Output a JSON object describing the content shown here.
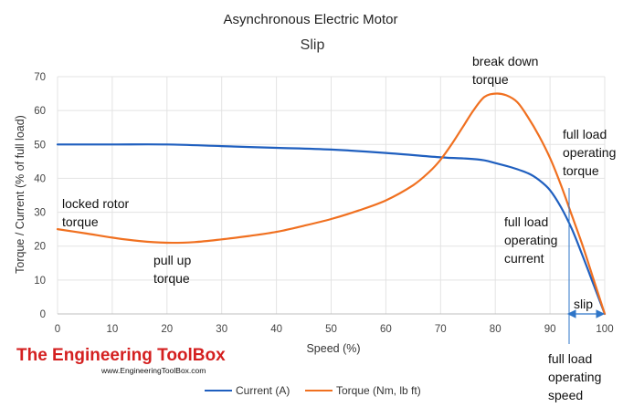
{
  "chart_data": {
    "type": "line",
    "title": "Asynchronous Electric Motor",
    "subtitle": "Slip",
    "xlabel": "Speed (%)",
    "ylabel": "Torque / Current (% of full load)",
    "xlim": [
      0,
      100
    ],
    "ylim": [
      0,
      70
    ],
    "xticks": [
      "0",
      "10",
      "20",
      "30",
      "40",
      "50",
      "60",
      "70",
      "80",
      "90",
      "100"
    ],
    "yticks": [
      "0",
      "10",
      "20",
      "30",
      "40",
      "50",
      "60",
      "70"
    ],
    "grid": true,
    "legend_position": "bottom",
    "series": [
      {
        "name": "Current (A)",
        "color": "#1f5fbf",
        "x": [
          0,
          10,
          20,
          30,
          40,
          50,
          60,
          70,
          75,
          78,
          80,
          83,
          86,
          88,
          90,
          92,
          94,
          96,
          98,
          100
        ],
        "y": [
          50,
          50,
          50,
          49.5,
          49,
          48.5,
          47.5,
          46.2,
          45.8,
          45.3,
          44.5,
          43.2,
          41.5,
          39.5,
          36.5,
          31.5,
          25,
          17,
          8.5,
          0
        ]
      },
      {
        "name": "Torque (Nm, lb ft)",
        "color": "#f07020",
        "x": [
          0,
          5,
          10,
          15,
          20,
          25,
          30,
          35,
          40,
          45,
          50,
          55,
          60,
          65,
          68,
          70,
          72,
          74,
          76,
          78,
          80,
          82,
          84,
          86,
          88,
          90,
          92,
          94,
          96,
          98,
          100
        ],
        "y": [
          25,
          23.8,
          22.5,
          21.5,
          21,
          21.2,
          22,
          23,
          24.2,
          26,
          28,
          30.5,
          33.5,
          38,
          42,
          45.5,
          50,
          55,
          60,
          64,
          65,
          64.5,
          62.5,
          58,
          52.5,
          46,
          38,
          29,
          20,
          10,
          0
        ]
      }
    ],
    "annotations": {
      "locked_rotor": [
        "locked rotor",
        "torque"
      ],
      "pull_up": [
        "pull up",
        "torque"
      ],
      "break_down": [
        "break down",
        "torque"
      ],
      "fl_torque": [
        "full load",
        "operating",
        "torque"
      ],
      "fl_current": [
        "full load",
        "operating",
        "current"
      ],
      "slip": "slip",
      "fl_speed": [
        "full load",
        "operating",
        "speed"
      ]
    }
  },
  "branding": {
    "name": "The Engineering ToolBox",
    "url": "www.EngineeringToolBox.com"
  }
}
